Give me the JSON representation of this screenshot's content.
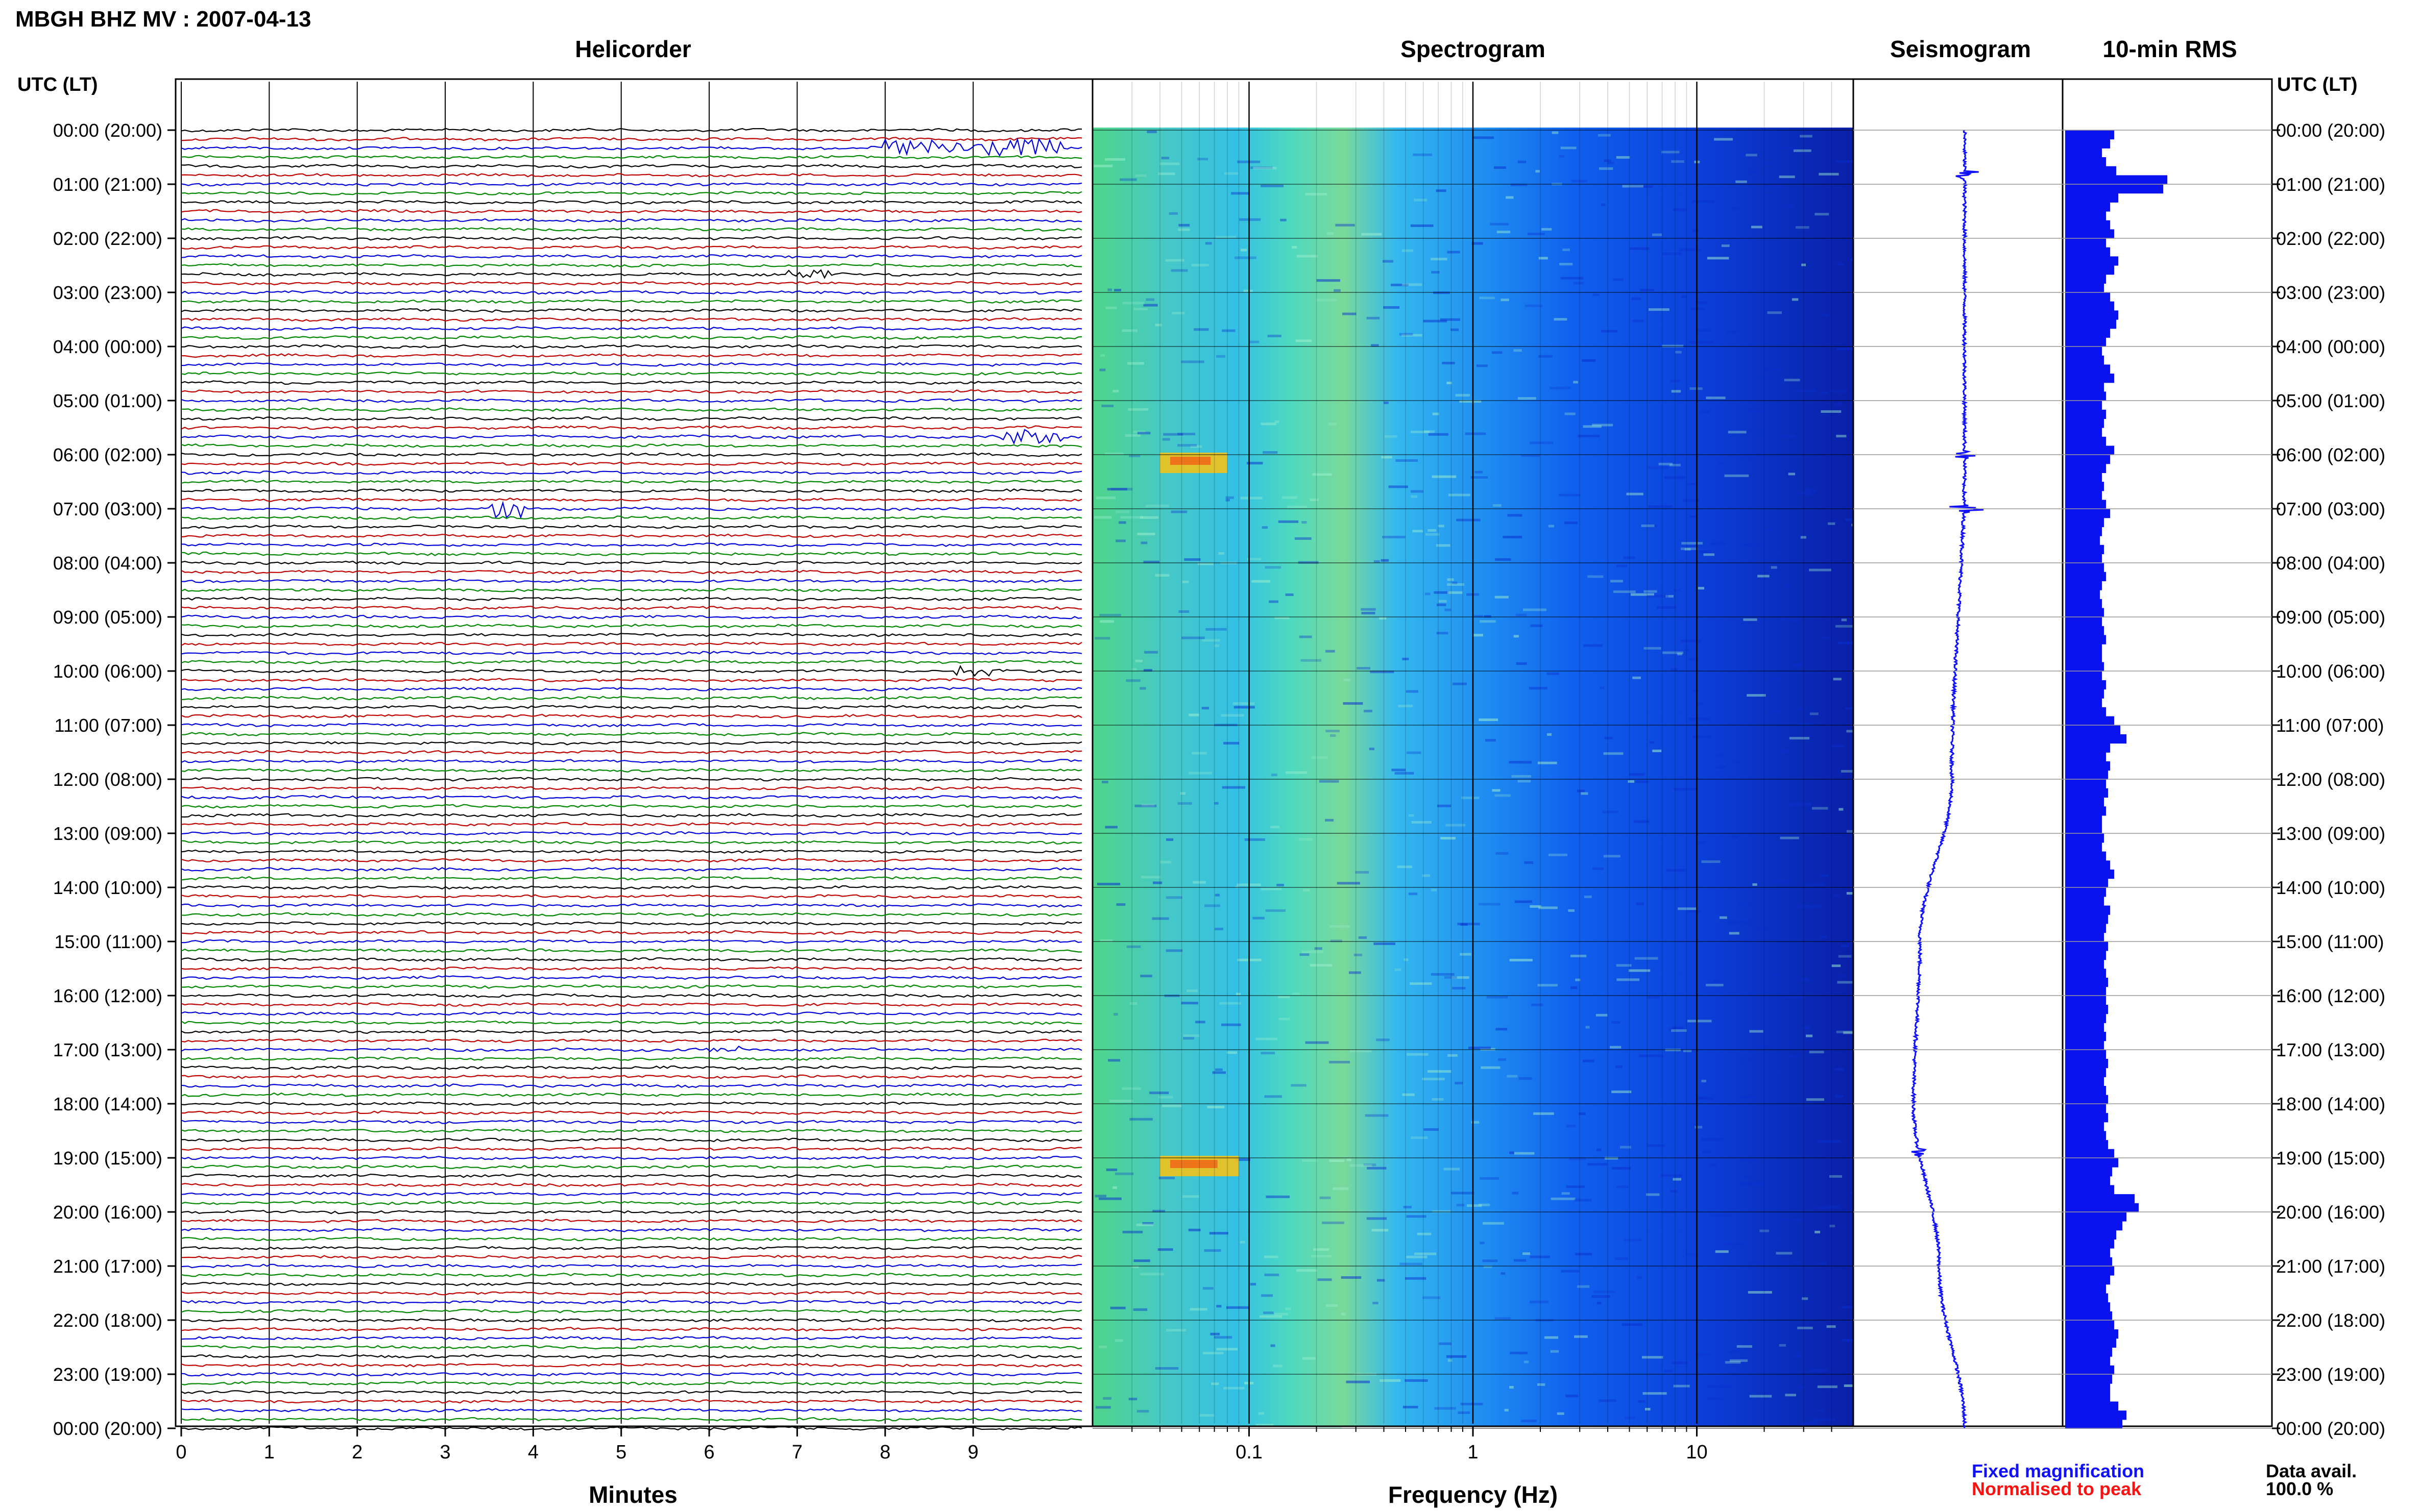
{
  "title": "MBGH BHZ MV : 2007-04-13",
  "panels": {
    "helicorder": "Helicorder",
    "spectrogram": "Spectrogram",
    "seismogram": "Seismogram",
    "rms": "10-min RMS"
  },
  "time_axis_header": "UTC (LT)",
  "hour_labels": [
    "00:00 (20:00)",
    "01:00 (21:00)",
    "02:00 (22:00)",
    "03:00 (23:00)",
    "04:00 (00:00)",
    "05:00 (01:00)",
    "06:00 (02:00)",
    "07:00 (03:00)",
    "08:00 (04:00)",
    "09:00 (05:00)",
    "10:00 (06:00)",
    "11:00 (07:00)",
    "12:00 (08:00)",
    "13:00 (09:00)",
    "14:00 (10:00)",
    "15:00 (11:00)",
    "16:00 (12:00)",
    "17:00 (13:00)",
    "18:00 (14:00)",
    "19:00 (15:00)",
    "20:00 (16:00)",
    "21:00 (17:00)",
    "22:00 (18:00)",
    "23:00 (19:00)",
    "00:00 (20:00)"
  ],
  "footer": {
    "fixed_magnification": "Fixed magnification",
    "normalised_to_peak": "Normalised to peak",
    "data_avail_label": "Data avail.",
    "data_avail_value": "100.0 %"
  },
  "colors": {
    "fixed": "#1010ff",
    "normalised": "#ff1010",
    "rms_bar": "#0a12f0",
    "trace_cycle": [
      "#000000",
      "#c00000",
      "#0000dd",
      "#008800"
    ]
  },
  "chart_data": [
    {
      "type": "line",
      "name": "helicorder",
      "xlabel": "Minutes",
      "x_ticks": [
        0,
        1,
        2,
        3,
        4,
        5,
        6,
        7,
        8,
        9
      ],
      "xlim": [
        0,
        10
      ],
      "rows_per_hour": 6,
      "hours": 24,
      "events": [
        {
          "hour": 0.33,
          "minute_start": 7.9,
          "minute_end": 10.0,
          "amplitude": 5
        },
        {
          "hour": 2.67,
          "minute_start": 6.9,
          "minute_end": 7.4,
          "amplitude": 2
        },
        {
          "hour": 5.67,
          "minute_start": 9.3,
          "minute_end": 10.0,
          "amplitude": 4
        },
        {
          "hour": 7.0,
          "minute_start": 3.5,
          "minute_end": 3.9,
          "amplitude": 6
        },
        {
          "hour": 9.99,
          "minute_start": 8.8,
          "minute_end": 9.2,
          "amplitude": 3
        },
        {
          "hour": 17.0,
          "minute_start": 5.9,
          "minute_end": 6.4,
          "amplitude": 2
        }
      ]
    },
    {
      "type": "heatmap",
      "name": "spectrogram",
      "xlabel": "Frequency (Hz)",
      "x_scale": "log",
      "xlim": [
        0.02,
        50
      ],
      "x_ticks": [
        0.1,
        1,
        10
      ],
      "x_tick_labels": [
        "0.1",
        "1",
        "10"
      ],
      "hot_bands": [
        {
          "hour": 6.0,
          "f_low": 0.04,
          "f_high": 0.08
        },
        {
          "hour": 19.0,
          "f_low": 0.04,
          "f_high": 0.09
        }
      ]
    },
    {
      "type": "line",
      "name": "seismogram",
      "events": [
        {
          "hour": 0.83,
          "amplitude": 0.5
        },
        {
          "hour": 6.0,
          "amplitude": 0.4
        },
        {
          "hour": 7.0,
          "amplitude": 0.8
        },
        {
          "hour": 18.9,
          "amplitude": 0.3
        }
      ],
      "drift": [
        [
          0,
          0
        ],
        [
          6,
          0
        ],
        [
          12,
          -0.1
        ],
        [
          15,
          -0.35
        ],
        [
          18,
          -0.4
        ],
        [
          21,
          -0.2
        ],
        [
          24,
          0
        ]
      ]
    },
    {
      "type": "bar",
      "name": "10-min RMS",
      "hour_step": 0.1667,
      "values": [
        0.24,
        0.22,
        0.18,
        0.2,
        0.25,
        0.5,
        0.48,
        0.26,
        0.22,
        0.2,
        0.22,
        0.24,
        0.2,
        0.22,
        0.26,
        0.24,
        0.2,
        0.19,
        0.22,
        0.24,
        0.26,
        0.25,
        0.22,
        0.2,
        0.18,
        0.19,
        0.22,
        0.24,
        0.19,
        0.2,
        0.18,
        0.2,
        0.19,
        0.18,
        0.2,
        0.24,
        0.22,
        0.2,
        0.18,
        0.19,
        0.18,
        0.2,
        0.22,
        0.19,
        0.18,
        0.17,
        0.19,
        0.18,
        0.19,
        0.2,
        0.18,
        0.17,
        0.18,
        0.19,
        0.18,
        0.19,
        0.2,
        0.18,
        0.18,
        0.19,
        0.18,
        0.2,
        0.19,
        0.18,
        0.2,
        0.24,
        0.27,
        0.3,
        0.22,
        0.2,
        0.22,
        0.21,
        0.2,
        0.21,
        0.19,
        0.2,
        0.18,
        0.18,
        0.19,
        0.18,
        0.2,
        0.22,
        0.24,
        0.21,
        0.2,
        0.19,
        0.22,
        0.21,
        0.2,
        0.19,
        0.21,
        0.2,
        0.19,
        0.2,
        0.21,
        0.2,
        0.2,
        0.21,
        0.2,
        0.19,
        0.2,
        0.19,
        0.2,
        0.21,
        0.2,
        0.19,
        0.2,
        0.21,
        0.2,
        0.21,
        0.19,
        0.2,
        0.21,
        0.24,
        0.26,
        0.23,
        0.22,
        0.24,
        0.34,
        0.36,
        0.3,
        0.28,
        0.25,
        0.24,
        0.22,
        0.23,
        0.24,
        0.22,
        0.2,
        0.21,
        0.22,
        0.23,
        0.24,
        0.26,
        0.25,
        0.23,
        0.22,
        0.24,
        0.23,
        0.22,
        0.22,
        0.26,
        0.3,
        0.28
      ]
    }
  ]
}
